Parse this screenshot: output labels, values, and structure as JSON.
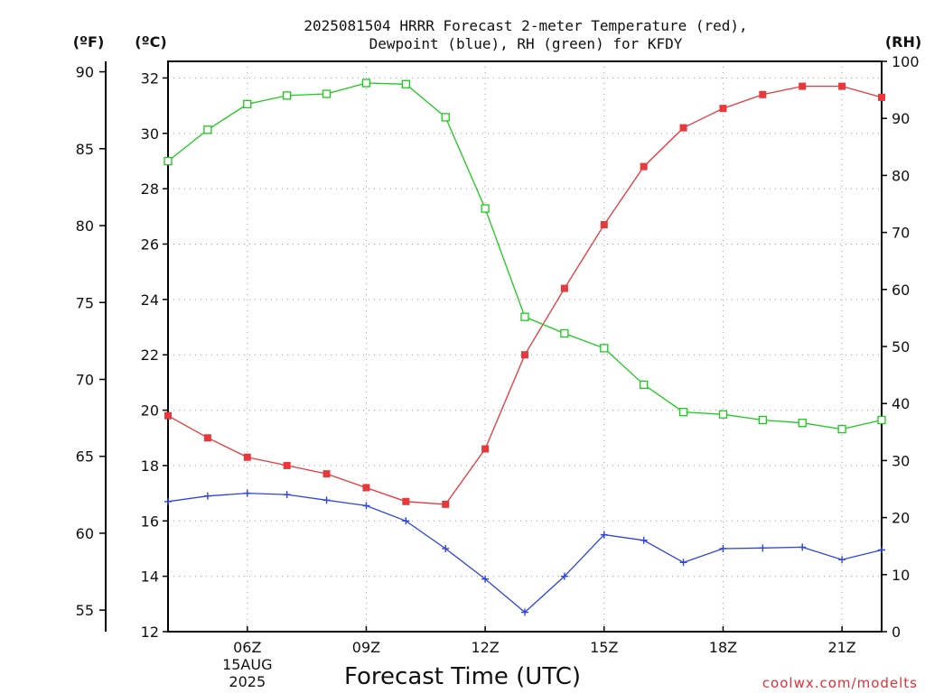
{
  "chart_data": {
    "type": "line",
    "title": [
      "2025081504 HRRR Forecast 2-meter Temperature (red),",
      "Dewpoint (blue), RH (green) for KFDY"
    ],
    "xlabel": "Forecast Time (UTC)",
    "credit": "coolwx.com/modelts",
    "axes": {
      "left_f": {
        "unit_label": "(ºF)",
        "ticks": [
          55,
          60,
          65,
          70,
          75,
          80,
          85,
          90
        ]
      },
      "left_c": {
        "unit_label": "(ºC)",
        "ylim": [
          12,
          32.6
        ],
        "ticks": [
          12,
          14,
          16,
          18,
          20,
          22,
          24,
          26,
          28,
          30,
          32
        ]
      },
      "right_rh": {
        "unit_label": "(RH)",
        "ylim": [
          0,
          100
        ],
        "ticks": [
          0,
          10,
          20,
          30,
          40,
          50,
          60,
          70,
          80,
          90,
          100
        ]
      }
    },
    "x": {
      "range_hours": [
        4,
        22
      ],
      "ticks": [
        {
          "hour": 6,
          "label": "06Z",
          "sub": [
            "15AUG",
            "2025"
          ]
        },
        {
          "hour": 9,
          "label": "09Z"
        },
        {
          "hour": 12,
          "label": "12Z"
        },
        {
          "hour": 15,
          "label": "15Z"
        },
        {
          "hour": 18,
          "label": "18Z"
        },
        {
          "hour": 21,
          "label": "21Z"
        }
      ]
    },
    "hours": [
      4,
      5,
      6,
      7,
      8,
      9,
      10,
      11,
      12,
      13,
      14,
      15,
      16,
      17,
      18,
      19,
      20,
      21,
      22
    ],
    "grid": true,
    "series": [
      {
        "key": "temperature",
        "color": "#e8383d",
        "marker": "filled-square",
        "axis": "left_c",
        "values": [
          19.8,
          19.0,
          18.3,
          18.0,
          17.7,
          17.2,
          16.7,
          16.6,
          18.6,
          22.0,
          24.4,
          26.7,
          28.8,
          30.2,
          30.9,
          31.4,
          31.7,
          31.7,
          31.3
        ]
      },
      {
        "key": "dewpoint",
        "color": "#2e44e0",
        "marker": "plus",
        "axis": "left_c",
        "values": [
          16.7,
          16.9,
          17.0,
          16.95,
          16.75,
          16.55,
          16.0,
          15.0,
          13.9,
          12.7,
          14.0,
          15.5,
          15.3,
          14.5,
          15.0,
          15.02,
          15.05,
          14.6,
          14.95
        ]
      },
      {
        "key": "rh",
        "color": "#1ec81e",
        "marker": "open-square",
        "axis": "right_rh",
        "values": [
          82.5,
          88.0,
          92.5,
          94.0,
          94.3,
          96.2,
          96.0,
          90.2,
          74.2,
          55.2,
          52.3,
          49.7,
          43.3,
          38.5,
          38.1,
          37.1,
          36.6,
          35.5,
          37.1
        ]
      }
    ]
  }
}
